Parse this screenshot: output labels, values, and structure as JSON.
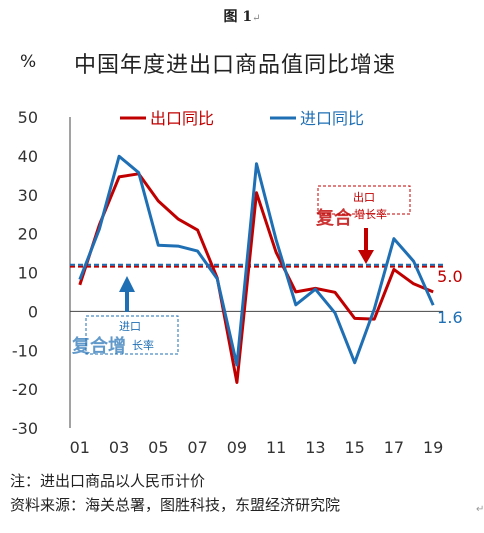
{
  "figure_label": "图 1",
  "figure_label_mark": "↵",
  "end_mark": "↵",
  "chart_data": {
    "type": "line",
    "title": "中国年度进出口商品值同比增速",
    "unit": "%",
    "x": [
      "01",
      "02",
      "03",
      "04",
      "05",
      "06",
      "07",
      "08",
      "09",
      "10",
      "11",
      "12",
      "13",
      "14",
      "15",
      "16",
      "17",
      "18",
      "19"
    ],
    "x_tick_labels": [
      "01",
      "03",
      "05",
      "07",
      "09",
      "11",
      "13",
      "15",
      "17",
      "19"
    ],
    "ylim": [
      -30,
      50
    ],
    "y_ticks": [
      -30,
      -20,
      -10,
      0,
      10,
      20,
      30,
      40,
      50
    ],
    "grid": false,
    "legend_position": "top",
    "series": [
      {
        "name": "出口同比",
        "color": "#c00000",
        "values": [
          6.8,
          22.3,
          34.6,
          35.4,
          28.4,
          23.8,
          20.9,
          8.6,
          -18.3,
          30.5,
          15.2,
          5.0,
          5.9,
          4.9,
          -1.8,
          -2.0,
          10.8,
          7.1,
          5.0
        ]
      },
      {
        "name": "进口同比",
        "color": "#1f6fb4",
        "values": [
          8.2,
          21.2,
          39.9,
          35.7,
          17.0,
          16.8,
          15.5,
          8.4,
          -13.8,
          38.0,
          18.4,
          1.7,
          5.7,
          -0.4,
          -13.2,
          0.6,
          18.7,
          12.9,
          1.6
        ]
      }
    ],
    "reference_lines": [
      {
        "name": "出口复合增长率",
        "value": 11.5,
        "color": "#c00000"
      },
      {
        "name": "进口复合增长率",
        "value": 12.0,
        "color": "#1f6fb4"
      }
    ],
    "annotations": [
      {
        "text_top": "出口",
        "text_big": "复合",
        "text_small": "增长率",
        "color": "#c00000"
      },
      {
        "text_top": "进口",
        "text_big": "复合增",
        "text_small": "长率",
        "color": "#1f6fb4"
      }
    ],
    "end_labels": [
      {
        "text": "5.0",
        "color": "#c00000"
      },
      {
        "text": "1.6",
        "color": "#1f6fb4"
      }
    ]
  },
  "note": "注：进出口商品以人民币计价",
  "source": "资料来源：海关总署，图胜科技，东盟经济研究院"
}
